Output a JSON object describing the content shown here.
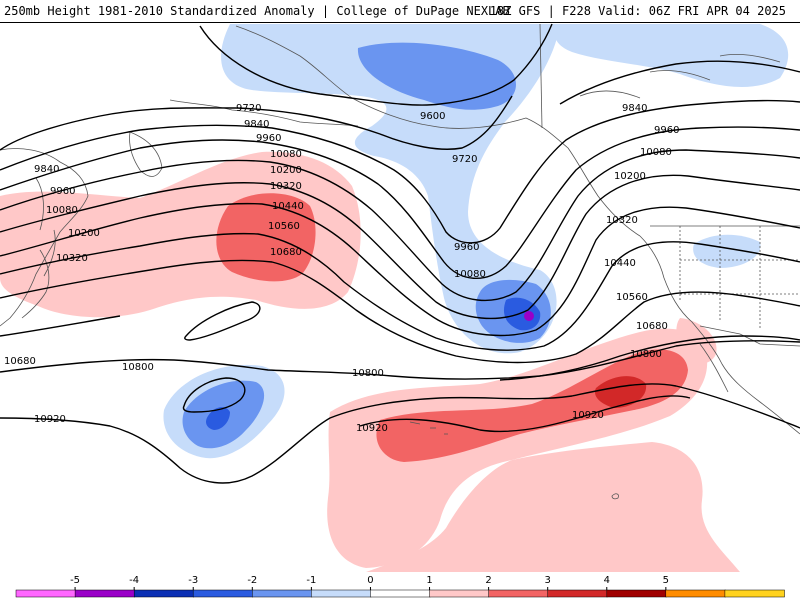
{
  "header": {
    "title_left": "250mb Height 1981-2010 Standardized Anomaly | College of DuPage NEXLAB",
    "title_right": "18Z GFS | F228 Valid: 06Z FRI APR 04 2025"
  },
  "colorbar": {
    "ticks": [
      "-5",
      "-4",
      "-3",
      "-2",
      "-1",
      "0",
      "1",
      "2",
      "3",
      "4",
      "5"
    ],
    "colors": [
      "#ff66ff",
      "#9a00c8",
      "#0a2fb4",
      "#2a5be0",
      "#6a95f0",
      "#c6dcfa",
      "#ffffff",
      "#ffc8c8",
      "#f26464",
      "#d22828",
      "#a00000",
      "#ff8c00",
      "#ffd21e"
    ]
  },
  "contour_labels": [
    {
      "text": "9600"
    },
    {
      "text": "9720"
    },
    {
      "text": "9720"
    },
    {
      "text": "9840"
    },
    {
      "text": "9840"
    },
    {
      "text": "9840"
    },
    {
      "text": "9960"
    },
    {
      "text": "9960"
    },
    {
      "text": "9960"
    },
    {
      "text": "9960"
    },
    {
      "text": "10080"
    },
    {
      "text": "10080"
    },
    {
      "text": "10080"
    },
    {
      "text": "10080"
    },
    {
      "text": "10200"
    },
    {
      "text": "10200"
    },
    {
      "text": "10200"
    },
    {
      "text": "10320"
    },
    {
      "text": "10320"
    },
    {
      "text": "10320"
    },
    {
      "text": "10440"
    },
    {
      "text": "10440"
    },
    {
      "text": "10560"
    },
    {
      "text": "10560"
    },
    {
      "text": "10680"
    },
    {
      "text": "10680"
    },
    {
      "text": "10680"
    },
    {
      "text": "10800"
    },
    {
      "text": "10800"
    },
    {
      "text": "10800"
    },
    {
      "text": "10920"
    },
    {
      "text": "10920"
    },
    {
      "text": "10920"
    }
  ]
}
